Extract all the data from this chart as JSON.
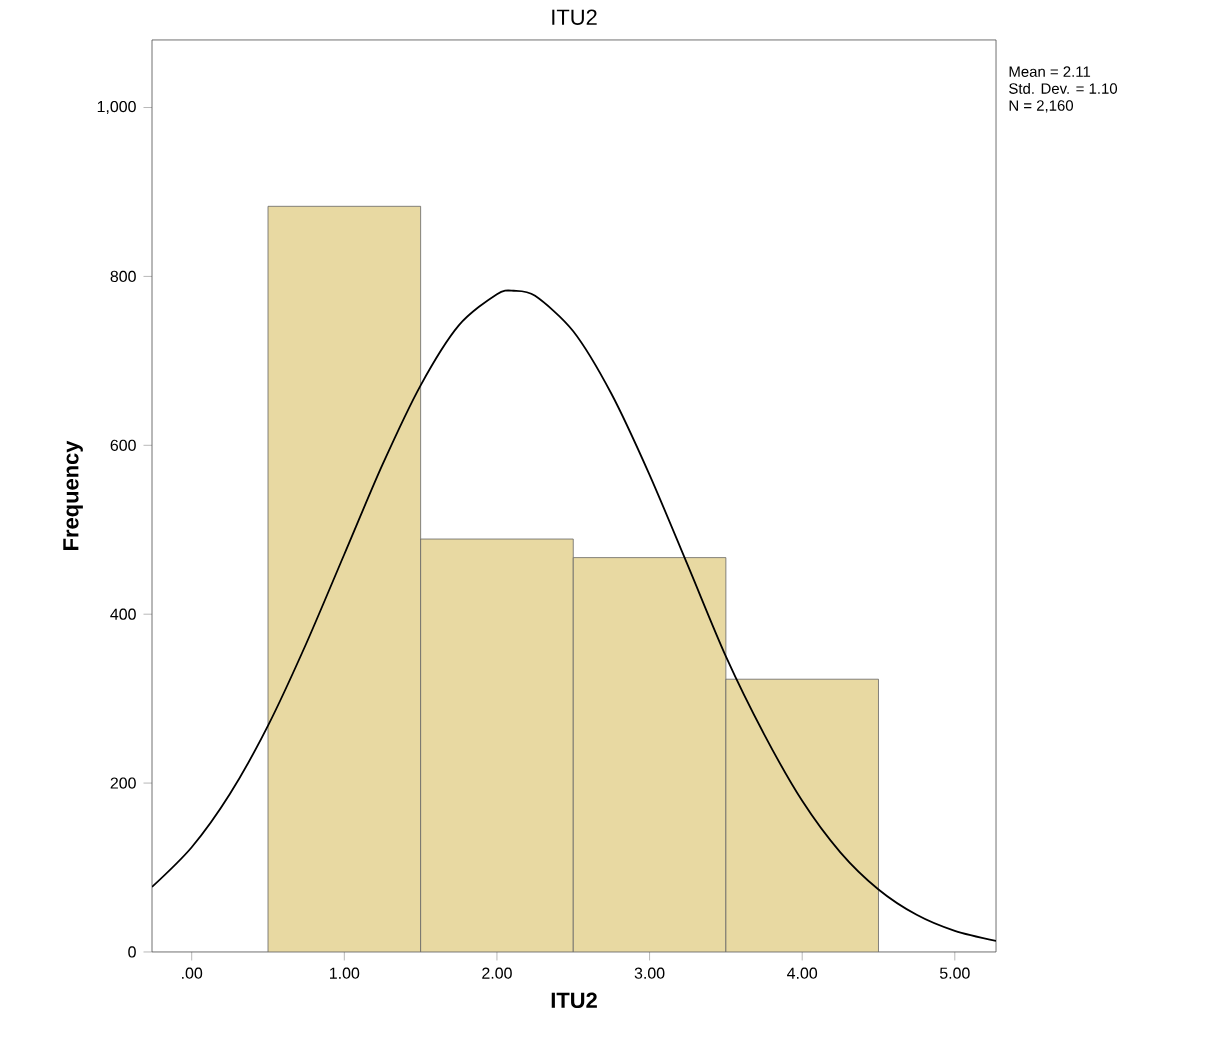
{
  "chart_data": {
    "type": "histogram",
    "title": "ITU2",
    "xlabel": "ITU2",
    "ylabel": "Frequency",
    "bins": [
      0.5,
      1.5,
      2.5,
      3.5,
      4.5
    ],
    "values": [
      883,
      489,
      467,
      323
    ],
    "color": "#e8d9a2",
    "series": [
      {
        "type": "line",
        "color": "#000000",
        "x": [
          -0.26,
          0,
          0.25,
          0.5,
          0.75,
          1.0,
          1.25,
          1.5,
          1.75,
          2.0,
          2.11,
          2.25,
          2.5,
          2.75,
          3.0,
          3.25,
          3.5,
          3.75,
          4.0,
          4.25,
          4.5,
          4.75,
          5.0,
          5.27
        ],
        "values": [
          77,
          124,
          187,
          268,
          365,
          471,
          577,
          671,
          742,
          779,
          783,
          777,
          735,
          661,
          565,
          458,
          350,
          258,
          179,
          118,
          74,
          44,
          25,
          13
        ]
      }
    ],
    "xlim": [
      -0.26,
      5.27
    ],
    "ylim": [
      0,
      1080
    ],
    "xticks": [
      {
        "value": 0,
        "label": ".00"
      },
      {
        "value": 1,
        "label": "1.00"
      },
      {
        "value": 2,
        "label": "2.00"
      },
      {
        "value": 3,
        "label": "3.00"
      },
      {
        "value": 4,
        "label": "4.00"
      },
      {
        "value": 5,
        "label": "5.00"
      }
    ],
    "yticks": [
      0,
      200,
      400,
      600,
      800,
      {
        "value": 1000,
        "label": "1,000"
      }
    ],
    "grid": false,
    "annotations": [
      "Mean = 2.11",
      "Std. Dev. = 1.10",
      "N = 2,160"
    ]
  }
}
